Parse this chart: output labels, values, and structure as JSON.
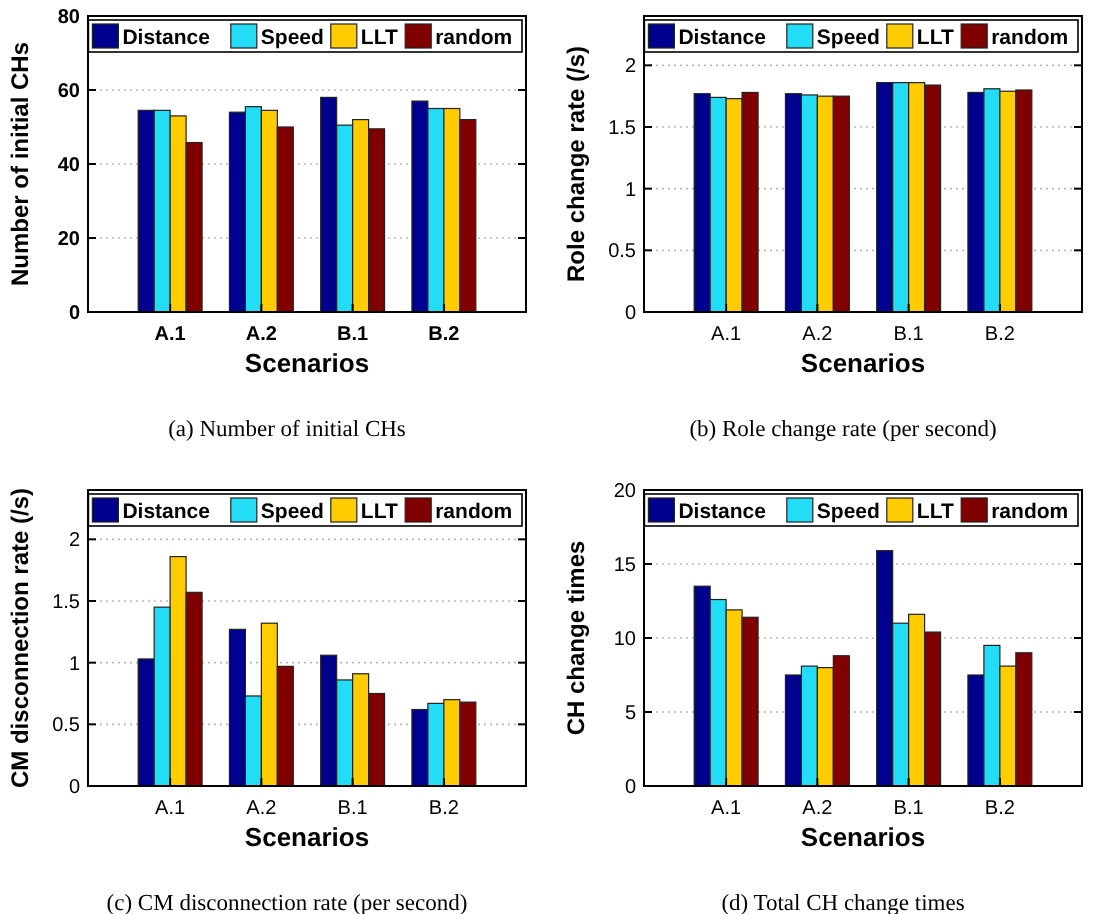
{
  "chart_data": [
    {
      "type": "bar",
      "annotations": [
        "(a) Number of initial CHs"
      ],
      "xlabel": "Scenarios",
      "ylabel": "Number of initial CHs",
      "categories": [
        "A.1",
        "A.2",
        "B.1",
        "B.2"
      ],
      "ylim": [
        0,
        80
      ],
      "yticks": [
        0,
        20,
        40,
        60,
        80
      ],
      "grid": "y",
      "legend": "top",
      "series": [
        {
          "name": "Distance",
          "color": "#00008f",
          "values": [
            54.5,
            54,
            58,
            57
          ]
        },
        {
          "name": "Speed",
          "color": "#22ddf5",
          "values": [
            54.5,
            55.5,
            50.5,
            55
          ]
        },
        {
          "name": "LLT",
          "color": "#ffcc00",
          "values": [
            53,
            54.5,
            52,
            55
          ]
        },
        {
          "name": "random",
          "color": "#800000",
          "values": [
            45.8,
            50,
            49.5,
            52
          ]
        }
      ]
    },
    {
      "type": "bar",
      "annotations": [
        "(b) Role change rate (per second)"
      ],
      "xlabel": "Scenarios",
      "ylabel": "Role change rate (/s)",
      "categories": [
        "A.1",
        "A.2",
        "B.1",
        "B.2"
      ],
      "ylim": [
        0,
        2.4
      ],
      "yticks": [
        0,
        0.5,
        1,
        1.5,
        2
      ],
      "grid": "y",
      "legend": "top",
      "series": [
        {
          "name": "Distance",
          "color": "#00008f",
          "values": [
            1.77,
            1.77,
            1.86,
            1.78
          ]
        },
        {
          "name": "Speed",
          "color": "#22ddf5",
          "values": [
            1.74,
            1.76,
            1.86,
            1.81
          ]
        },
        {
          "name": "LLT",
          "color": "#ffcc00",
          "values": [
            1.73,
            1.75,
            1.86,
            1.79
          ]
        },
        {
          "name": "random",
          "color": "#800000",
          "values": [
            1.78,
            1.75,
            1.84,
            1.8
          ]
        }
      ]
    },
    {
      "type": "bar",
      "annotations": [
        "(c) CM disconnection rate (per second)"
      ],
      "xlabel": "Scenarios",
      "ylabel": "CM disconnection rate (/s)",
      "categories": [
        "A.1",
        "A.2",
        "B.1",
        "B.2"
      ],
      "ylim": [
        0,
        2.4
      ],
      "yticks": [
        0,
        0.5,
        1,
        1.5,
        2
      ],
      "grid": "y",
      "legend": "top",
      "series": [
        {
          "name": "Distance",
          "color": "#00008f",
          "values": [
            1.03,
            1.27,
            1.06,
            0.62
          ]
        },
        {
          "name": "Speed",
          "color": "#22ddf5",
          "values": [
            1.45,
            0.73,
            0.86,
            0.67
          ]
        },
        {
          "name": "LLT",
          "color": "#ffcc00",
          "values": [
            1.86,
            1.32,
            0.91,
            0.7
          ]
        },
        {
          "name": "random",
          "color": "#800000",
          "values": [
            1.57,
            0.97,
            0.75,
            0.68
          ]
        }
      ]
    },
    {
      "type": "bar",
      "annotations": [
        "(d) Total CH change times"
      ],
      "xlabel": "Scenarios",
      "ylabel": "CH change times",
      "categories": [
        "A.1",
        "A.2",
        "B.1",
        "B.2"
      ],
      "ylim": [
        0,
        20
      ],
      "yticks": [
        0,
        5,
        10,
        15,
        20
      ],
      "grid": "y",
      "legend": "top",
      "series": [
        {
          "name": "Distance",
          "color": "#00008f",
          "values": [
            13.5,
            7.5,
            15.9,
            7.5
          ]
        },
        {
          "name": "Speed",
          "color": "#22ddf5",
          "values": [
            12.6,
            8.1,
            11,
            9.5
          ]
        },
        {
          "name": "LLT",
          "color": "#ffcc00",
          "values": [
            11.9,
            8,
            11.6,
            8.1
          ]
        },
        {
          "name": "random",
          "color": "#800000",
          "values": [
            11.4,
            8.8,
            10.4,
            9
          ]
        }
      ]
    }
  ]
}
